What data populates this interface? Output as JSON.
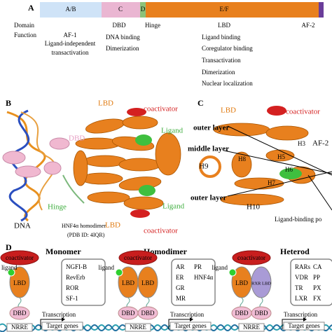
{
  "panel_a": {
    "label": "A",
    "segments": [
      "A/B",
      "C",
      "D",
      "E/F"
    ],
    "row_labels": [
      "Domain",
      "Function"
    ],
    "columns": [
      {
        "title": "AF-1",
        "lines": [
          "Ligand-independent",
          "transactivation"
        ]
      },
      {
        "title": "DBD",
        "lines": [
          "DNA binding",
          "Dimerization"
        ]
      },
      {
        "title": "LBD",
        "lines": [
          "Ligand binding",
          "Coregulator binding",
          "Transactivation",
          "Dimerization",
          "Nuclear localization"
        ]
      }
    ],
    "hinge": "Hinge",
    "af2": "AF-2"
  },
  "panel_b": {
    "label": "B",
    "lbd_top": "LBD",
    "coactivator_top": "coactivator",
    "dbd": "DBD",
    "ligand_top": "Ligand",
    "hinge": "Hinge",
    "ligand_bottom": "Ligand",
    "dna": "DNA",
    "caption": [
      "HNF4α homodimer",
      "(PDB ID: 4IQR)"
    ],
    "lbd_bottom": "LBD",
    "coactivator_bottom": "coactivator"
  },
  "panel_c": {
    "label": "C",
    "lbd": "LBD",
    "coactivator": "coactivator",
    "outer_layer_top": "outer layer",
    "middle_layer": "middle layer",
    "outer_layer_bottom": "outer layer",
    "af2": "AF-2",
    "helices": [
      "H3",
      "H5",
      "H9",
      "H8",
      "H6",
      "H7",
      "H10"
    ],
    "pocket": "Ligand-binding po"
  },
  "panel_d": {
    "label": "D",
    "groups": [
      {
        "title": "Monomer",
        "coactivator": "coactivator",
        "ligand": "ligand",
        "lbd": [
          "LBD"
        ],
        "dbd": [
          "DBD"
        ],
        "nrre": "NRRE",
        "transcription": "Transcription",
        "target_genes": "Target genes",
        "receptors": [
          [
            "NGFI-B"
          ],
          [
            "RevErb"
          ],
          [
            "ROR"
          ],
          [
            "SF-1"
          ]
        ]
      },
      {
        "title": "Homodimer",
        "coactivator": "coactivator",
        "ligand": "ligand",
        "lbd": [
          "LBD",
          "LBD"
        ],
        "dbd": [
          "DBD",
          "DBD"
        ],
        "nrre": "NRRE",
        "transcription": "Transcription",
        "target_genes": "Target genes",
        "receptors": [
          [
            "AR",
            "PR"
          ],
          [
            "ER",
            "HNF4α"
          ],
          [
            "GR"
          ],
          [
            "MR"
          ]
        ]
      },
      {
        "title": "Heterod",
        "coactivator": "coactivator",
        "ligand": "ligand",
        "lbd": [
          "LBD",
          "RXR LBD"
        ],
        "dbd": [
          "DBD",
          "DBD"
        ],
        "nrre": "NRRE",
        "transcription": "Transcription",
        "target_genes": "Target genes",
        "receptors": [
          [
            "RARs",
            "CA"
          ],
          [
            "VDR",
            "PP"
          ],
          [
            "TR",
            "PX"
          ],
          [
            "LXR",
            "FX"
          ]
        ]
      }
    ]
  }
}
